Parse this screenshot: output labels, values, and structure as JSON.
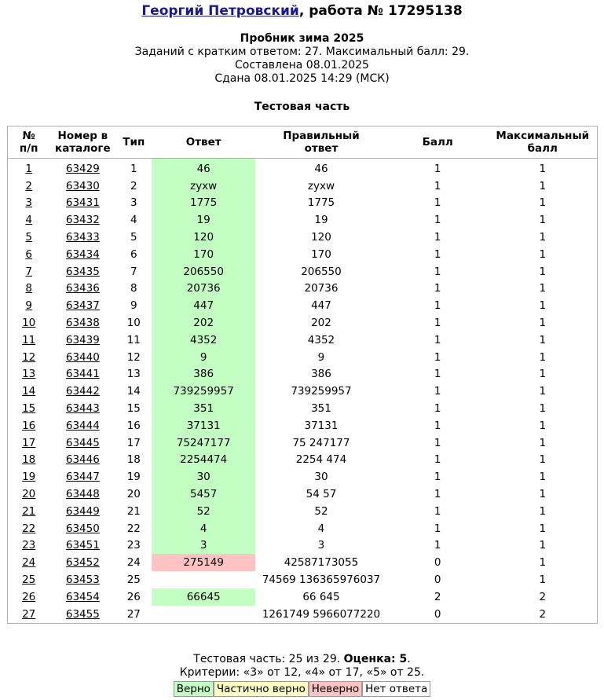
{
  "header": {
    "student_name": "Георгий Петровский",
    "work_label": ", работа № 17295138",
    "test_name": "Пробник зима 2025",
    "info_tasks": "Заданий с кратким ответом: 27. Максимальный балл: 29.",
    "info_created": "Составлена 08.01.2025",
    "info_submitted": "Сдана 08.01.2025 14:29 (МСК)"
  },
  "section_title": "Тестовая часть",
  "table": {
    "columns": [
      "№ п/п",
      "Номер в каталоге",
      "Тип",
      "Ответ",
      "Правильный ответ",
      "Балл",
      "Максимальный балл"
    ],
    "rows": [
      {
        "n": "1",
        "catalog": "63429",
        "type": "1",
        "answer": "46",
        "correct": "46",
        "score": "1",
        "max": "1",
        "status": "ok"
      },
      {
        "n": "2",
        "catalog": "63430",
        "type": "2",
        "answer": "zyxw",
        "correct": "zyxw",
        "score": "1",
        "max": "1",
        "status": "ok"
      },
      {
        "n": "3",
        "catalog": "63431",
        "type": "3",
        "answer": "1775",
        "correct": "1775",
        "score": "1",
        "max": "1",
        "status": "ok"
      },
      {
        "n": "4",
        "catalog": "63432",
        "type": "4",
        "answer": "19",
        "correct": "19",
        "score": "1",
        "max": "1",
        "status": "ok"
      },
      {
        "n": "5",
        "catalog": "63433",
        "type": "5",
        "answer": "120",
        "correct": "120",
        "score": "1",
        "max": "1",
        "status": "ok"
      },
      {
        "n": "6",
        "catalog": "63434",
        "type": "6",
        "answer": "170",
        "correct": "170",
        "score": "1",
        "max": "1",
        "status": "ok"
      },
      {
        "n": "7",
        "catalog": "63435",
        "type": "7",
        "answer": "206550",
        "correct": "206550",
        "score": "1",
        "max": "1",
        "status": "ok"
      },
      {
        "n": "8",
        "catalog": "63436",
        "type": "8",
        "answer": "20736",
        "correct": "20736",
        "score": "1",
        "max": "1",
        "status": "ok"
      },
      {
        "n": "9",
        "catalog": "63437",
        "type": "9",
        "answer": "447",
        "correct": "447",
        "score": "1",
        "max": "1",
        "status": "ok"
      },
      {
        "n": "10",
        "catalog": "63438",
        "type": "10",
        "answer": "202",
        "correct": "202",
        "score": "1",
        "max": "1",
        "status": "ok"
      },
      {
        "n": "11",
        "catalog": "63439",
        "type": "11",
        "answer": "4352",
        "correct": "4352",
        "score": "1",
        "max": "1",
        "status": "ok"
      },
      {
        "n": "12",
        "catalog": "63440",
        "type": "12",
        "answer": "9",
        "correct": "9",
        "score": "1",
        "max": "1",
        "status": "ok"
      },
      {
        "n": "13",
        "catalog": "63441",
        "type": "13",
        "answer": "386",
        "correct": "386",
        "score": "1",
        "max": "1",
        "status": "ok"
      },
      {
        "n": "14",
        "catalog": "63442",
        "type": "14",
        "answer": "739259957",
        "correct": "739259957",
        "score": "1",
        "max": "1",
        "status": "ok"
      },
      {
        "n": "15",
        "catalog": "63443",
        "type": "15",
        "answer": "351",
        "correct": "351",
        "score": "1",
        "max": "1",
        "status": "ok"
      },
      {
        "n": "16",
        "catalog": "63444",
        "type": "16",
        "answer": "37131",
        "correct": "37131",
        "score": "1",
        "max": "1",
        "status": "ok"
      },
      {
        "n": "17",
        "catalog": "63445",
        "type": "17",
        "answer": "75247177",
        "correct": "75 247177",
        "score": "1",
        "max": "1",
        "status": "ok"
      },
      {
        "n": "18",
        "catalog": "63446",
        "type": "18",
        "answer": "2254474",
        "correct": "2254 474",
        "score": "1",
        "max": "1",
        "status": "ok"
      },
      {
        "n": "19",
        "catalog": "63447",
        "type": "19",
        "answer": "30",
        "correct": "30",
        "score": "1",
        "max": "1",
        "status": "ok"
      },
      {
        "n": "20",
        "catalog": "63448",
        "type": "20",
        "answer": "5457",
        "correct": "54 57",
        "score": "1",
        "max": "1",
        "status": "ok"
      },
      {
        "n": "21",
        "catalog": "63449",
        "type": "21",
        "answer": "52",
        "correct": "52",
        "score": "1",
        "max": "1",
        "status": "ok"
      },
      {
        "n": "22",
        "catalog": "63450",
        "type": "22",
        "answer": "4",
        "correct": "4",
        "score": "1",
        "max": "1",
        "status": "ok"
      },
      {
        "n": "23",
        "catalog": "63451",
        "type": "23",
        "answer": "3",
        "correct": "3",
        "score": "1",
        "max": "1",
        "status": "ok"
      },
      {
        "n": "24",
        "catalog": "63452",
        "type": "24",
        "answer": "275149",
        "correct": "42587173055",
        "score": "0",
        "max": "1",
        "status": "bad"
      },
      {
        "n": "25",
        "catalog": "63453",
        "type": "25",
        "answer": "",
        "correct": "74569 136365976037",
        "score": "0",
        "max": "1",
        "status": "none"
      },
      {
        "n": "26",
        "catalog": "63454",
        "type": "26",
        "answer": "66645",
        "correct": "66 645",
        "score": "2",
        "max": "2",
        "status": "ok"
      },
      {
        "n": "27",
        "catalog": "63455",
        "type": "27",
        "answer": "",
        "correct": "1261749 5966077220",
        "score": "0",
        "max": "2",
        "status": "none"
      }
    ]
  },
  "summary": {
    "test_part": "Тестовая часть: 25 из 29.",
    "grade_label": "Оценка: 5",
    "grade_end": ".",
    "criteria": "Критерии: «3» от 12, «4» от 17, «5» от 25."
  },
  "legend": {
    "correct": "Верно",
    "partial": "Частично верно",
    "wrong": "Неверно",
    "no_answer": "Нет ответа"
  },
  "colors": {
    "correct_bg": "#c3ffc3",
    "partial_bg": "#ffffc3",
    "wrong_bg": "#ffc3c3",
    "name_link": "#1a1a8c"
  }
}
